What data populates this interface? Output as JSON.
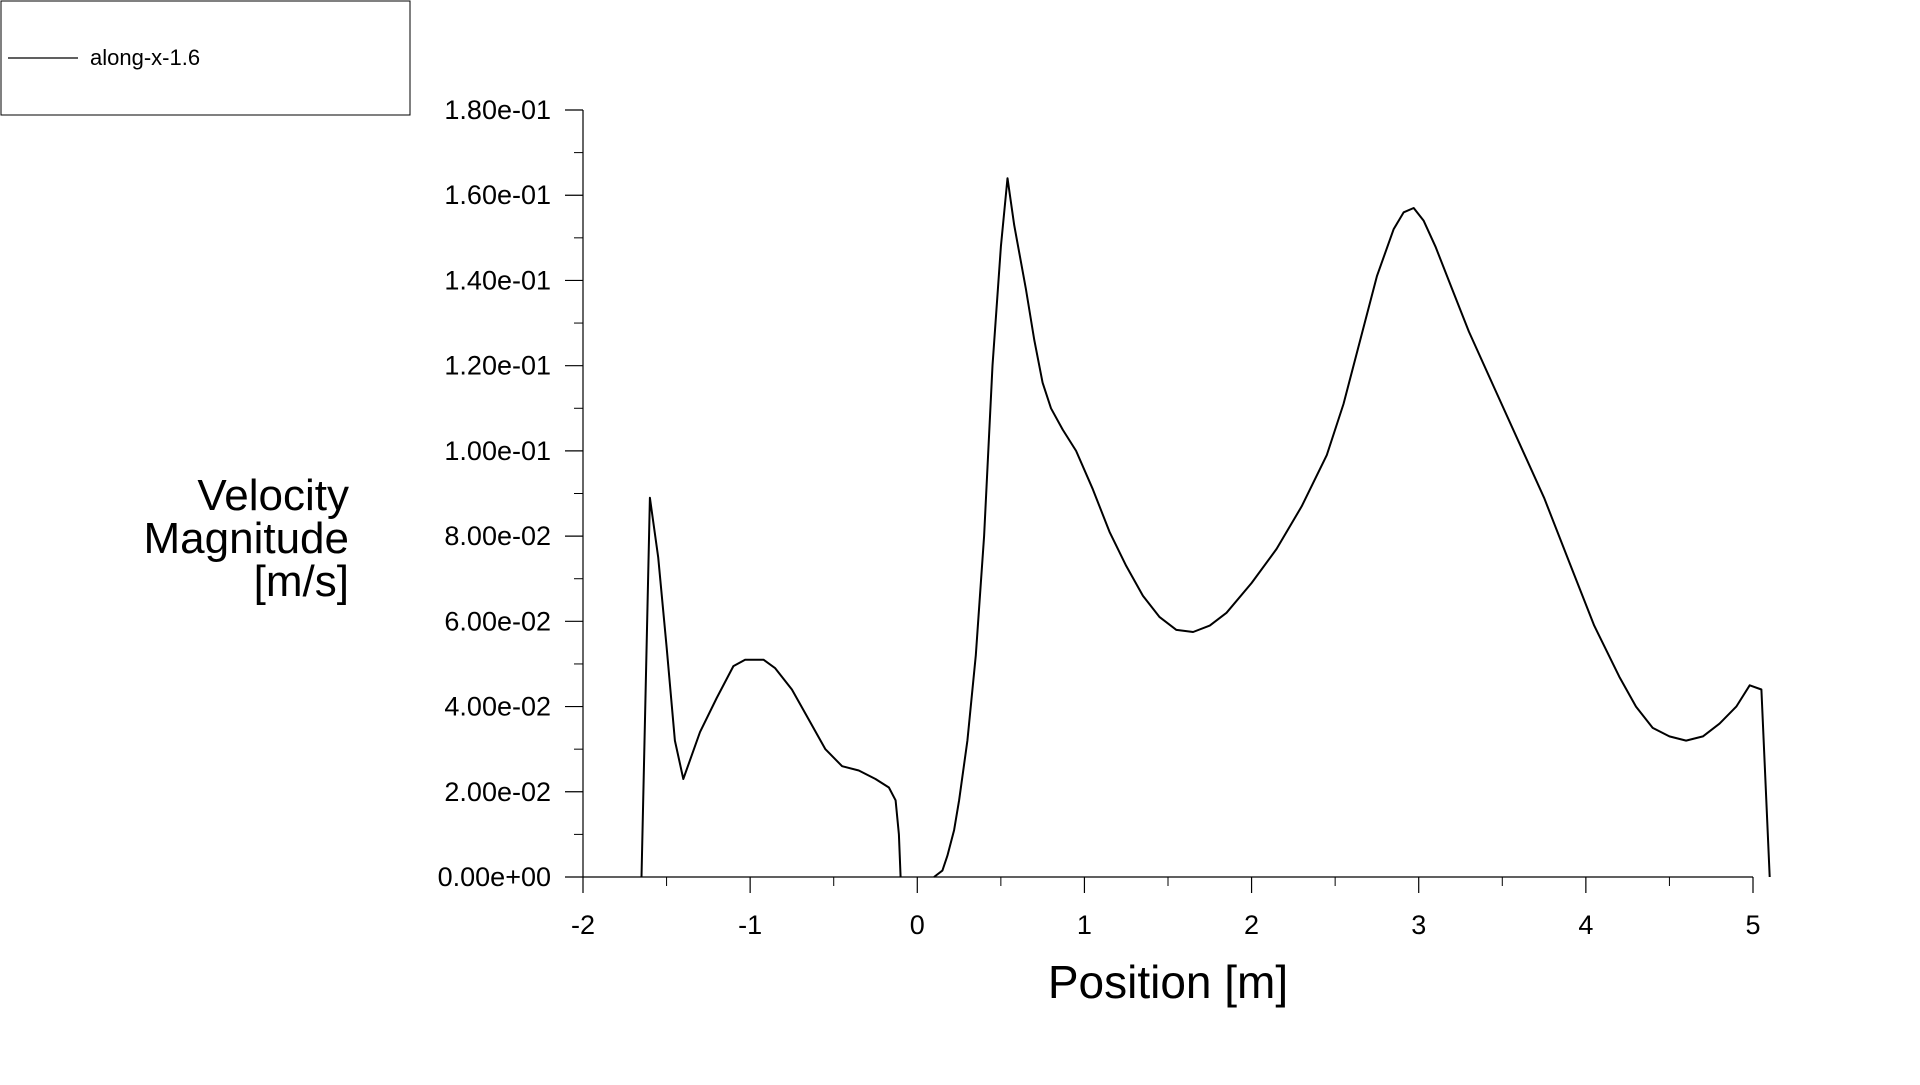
{
  "chart_data": {
    "type": "line",
    "title": "",
    "xlabel": "Position [m]",
    "ylabel_lines": [
      "Velocity",
      "Magnitude",
      "[m/s]"
    ],
    "xlim": [
      -2,
      5
    ],
    "ylim": [
      0,
      0.18
    ],
    "x_ticks": [
      -2,
      -1,
      0,
      1,
      2,
      3,
      4,
      5
    ],
    "x_tick_labels": [
      "-2",
      "-1",
      "0",
      "1",
      "2",
      "3",
      "4",
      "5"
    ],
    "y_ticks": [
      0,
      0.02,
      0.04,
      0.06,
      0.08,
      0.1,
      0.12,
      0.14,
      0.16,
      0.18
    ],
    "y_tick_labels": [
      "0.00e+00",
      "2.00e-02",
      "4.00e-02",
      "6.00e-02",
      "8.00e-02",
      "1.00e-01",
      "1.20e-01",
      "1.40e-01",
      "1.60e-01",
      "1.80e-01"
    ],
    "grid": false,
    "legend_position": "top-left",
    "line_color": "#000000",
    "series": [
      {
        "name": "along-x-1.6",
        "segments": [
          [
            [
              -1.65,
              0.0
            ],
            [
              -1.6,
              0.089
            ],
            [
              -1.55,
              0.075
            ],
            [
              -1.5,
              0.054
            ],
            [
              -1.45,
              0.032
            ],
            [
              -1.4,
              0.023
            ],
            [
              -1.3,
              0.034
            ],
            [
              -1.2,
              0.042
            ],
            [
              -1.1,
              0.0495
            ],
            [
              -1.03,
              0.051
            ],
            [
              -0.92,
              0.051
            ],
            [
              -0.85,
              0.049
            ],
            [
              -0.75,
              0.044
            ],
            [
              -0.65,
              0.037
            ],
            [
              -0.55,
              0.03
            ],
            [
              -0.45,
              0.026
            ],
            [
              -0.35,
              0.025
            ],
            [
              -0.25,
              0.023
            ],
            [
              -0.17,
              0.021
            ],
            [
              -0.13,
              0.018
            ],
            [
              -0.11,
              0.01
            ],
            [
              -0.1,
              0.0
            ]
          ],
          [
            [
              0.1,
              0.0
            ],
            [
              0.15,
              0.0015
            ],
            [
              0.18,
              0.005
            ],
            [
              0.22,
              0.011
            ],
            [
              0.25,
              0.018
            ],
            [
              0.3,
              0.032
            ],
            [
              0.35,
              0.052
            ],
            [
              0.4,
              0.08
            ],
            [
              0.45,
              0.12
            ],
            [
              0.5,
              0.148
            ],
            [
              0.54,
              0.164
            ],
            [
              0.58,
              0.153
            ],
            [
              0.65,
              0.138
            ],
            [
              0.7,
              0.126
            ],
            [
              0.75,
              0.116
            ],
            [
              0.8,
              0.11
            ],
            [
              0.87,
              0.105
            ],
            [
              0.95,
              0.1
            ],
            [
              1.05,
              0.091
            ],
            [
              1.15,
              0.081
            ],
            [
              1.25,
              0.073
            ],
            [
              1.35,
              0.066
            ],
            [
              1.45,
              0.061
            ],
            [
              1.55,
              0.058
            ],
            [
              1.65,
              0.0575
            ],
            [
              1.75,
              0.059
            ],
            [
              1.85,
              0.062
            ],
            [
              2.0,
              0.069
            ],
            [
              2.15,
              0.077
            ],
            [
              2.3,
              0.087
            ],
            [
              2.45,
              0.099
            ],
            [
              2.55,
              0.111
            ],
            [
              2.65,
              0.126
            ],
            [
              2.75,
              0.141
            ],
            [
              2.85,
              0.152
            ],
            [
              2.91,
              0.156
            ],
            [
              2.97,
              0.157
            ],
            [
              3.03,
              0.154
            ],
            [
              3.1,
              0.148
            ],
            [
              3.2,
              0.138
            ],
            [
              3.3,
              0.128
            ],
            [
              3.45,
              0.115
            ],
            [
              3.6,
              0.102
            ],
            [
              3.75,
              0.089
            ],
            [
              3.9,
              0.074
            ],
            [
              4.05,
              0.059
            ],
            [
              4.2,
              0.047
            ],
            [
              4.3,
              0.04
            ],
            [
              4.4,
              0.035
            ],
            [
              4.5,
              0.033
            ],
            [
              4.6,
              0.032
            ],
            [
              4.7,
              0.033
            ],
            [
              4.8,
              0.036
            ],
            [
              4.9,
              0.04
            ],
            [
              4.98,
              0.045
            ],
            [
              5.05,
              0.044
            ],
            [
              5.1,
              0.0
            ]
          ]
        ]
      }
    ]
  },
  "legend": {
    "entries": [
      "along-x-1.6"
    ]
  }
}
